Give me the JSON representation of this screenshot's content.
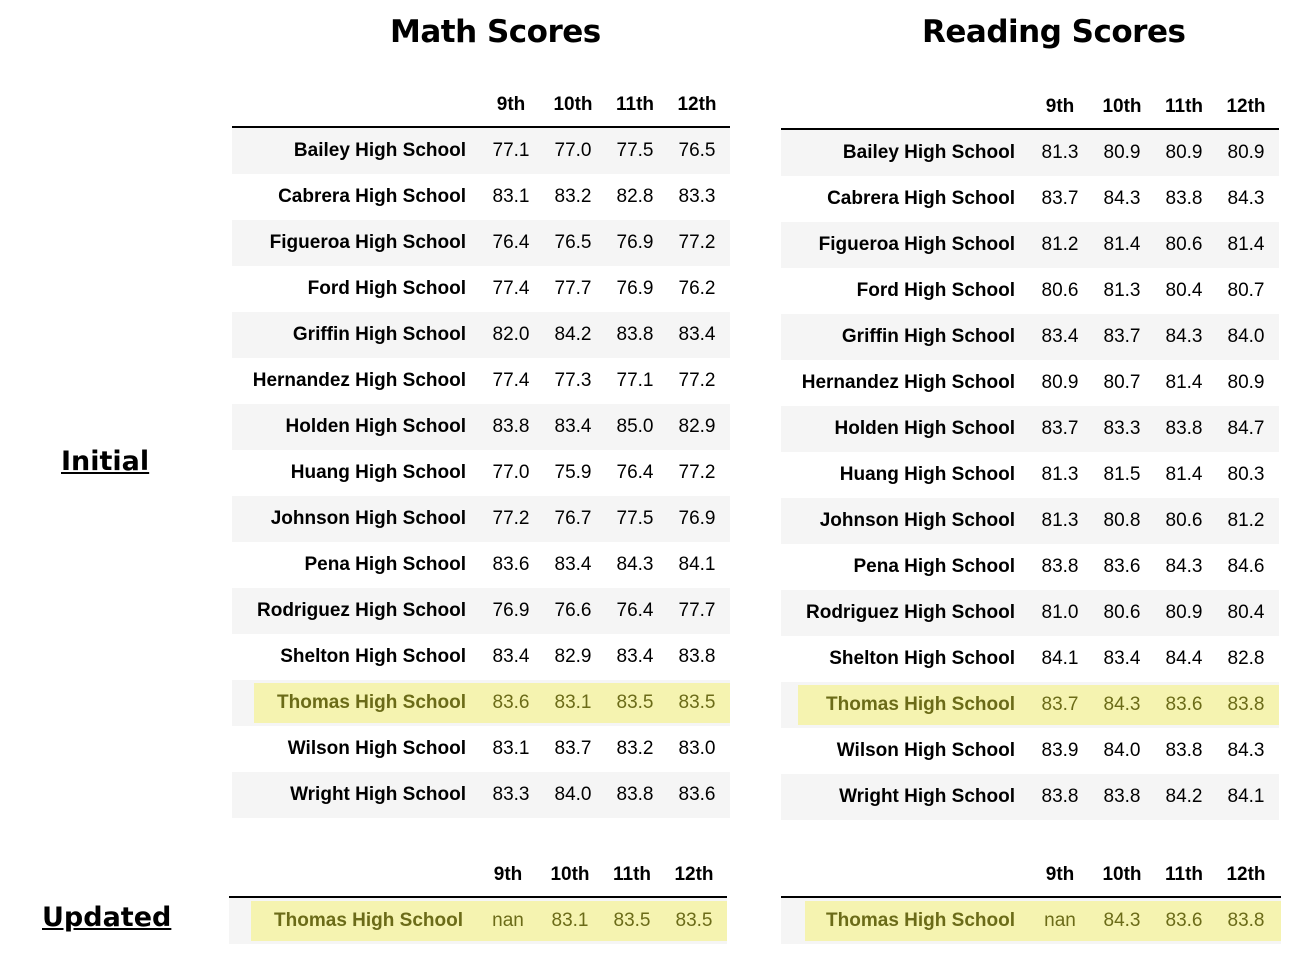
{
  "titles": {
    "math": "Math Scores",
    "reading": "Reading Scores"
  },
  "labels": {
    "initial": "Initial",
    "updated": "Updated"
  },
  "columns": [
    "9th",
    "10th",
    "11th",
    "12th"
  ],
  "highlight_color": "#f5f3b0",
  "math_initial": [
    {
      "school": "Bailey High School",
      "scores": [
        "77.1",
        "77.0",
        "77.5",
        "76.5"
      ]
    },
    {
      "school": "Cabrera High School",
      "scores": [
        "83.1",
        "83.2",
        "82.8",
        "83.3"
      ]
    },
    {
      "school": "Figueroa High School",
      "scores": [
        "76.4",
        "76.5",
        "76.9",
        "77.2"
      ]
    },
    {
      "school": "Ford High School",
      "scores": [
        "77.4",
        "77.7",
        "76.9",
        "76.2"
      ]
    },
    {
      "school": "Griffin High School",
      "scores": [
        "82.0",
        "84.2",
        "83.8",
        "83.4"
      ]
    },
    {
      "school": "Hernandez High School",
      "scores": [
        "77.4",
        "77.3",
        "77.1",
        "77.2"
      ]
    },
    {
      "school": "Holden High School",
      "scores": [
        "83.8",
        "83.4",
        "85.0",
        "82.9"
      ]
    },
    {
      "school": "Huang High School",
      "scores": [
        "77.0",
        "75.9",
        "76.4",
        "77.2"
      ]
    },
    {
      "school": "Johnson High School",
      "scores": [
        "77.2",
        "76.7",
        "77.5",
        "76.9"
      ]
    },
    {
      "school": "Pena High School",
      "scores": [
        "83.6",
        "83.4",
        "84.3",
        "84.1"
      ]
    },
    {
      "school": "Rodriguez High School",
      "scores": [
        "76.9",
        "76.6",
        "76.4",
        "77.7"
      ]
    },
    {
      "school": "Shelton High School",
      "scores": [
        "83.4",
        "82.9",
        "83.4",
        "83.8"
      ]
    },
    {
      "school": "Thomas High School",
      "scores": [
        "83.6",
        "83.1",
        "83.5",
        "83.5"
      ],
      "highlight": true
    },
    {
      "school": "Wilson High School",
      "scores": [
        "83.1",
        "83.7",
        "83.2",
        "83.0"
      ]
    },
    {
      "school": "Wright High School",
      "scores": [
        "83.3",
        "84.0",
        "83.8",
        "83.6"
      ]
    }
  ],
  "reading_initial": [
    {
      "school": "Bailey High School",
      "scores": [
        "81.3",
        "80.9",
        "80.9",
        "80.9"
      ]
    },
    {
      "school": "Cabrera High School",
      "scores": [
        "83.7",
        "84.3",
        "83.8",
        "84.3"
      ]
    },
    {
      "school": "Figueroa High School",
      "scores": [
        "81.2",
        "81.4",
        "80.6",
        "81.4"
      ]
    },
    {
      "school": "Ford High School",
      "scores": [
        "80.6",
        "81.3",
        "80.4",
        "80.7"
      ]
    },
    {
      "school": "Griffin High School",
      "scores": [
        "83.4",
        "83.7",
        "84.3",
        "84.0"
      ]
    },
    {
      "school": "Hernandez High School",
      "scores": [
        "80.9",
        "80.7",
        "81.4",
        "80.9"
      ]
    },
    {
      "school": "Holden High School",
      "scores": [
        "83.7",
        "83.3",
        "83.8",
        "84.7"
      ]
    },
    {
      "school": "Huang High School",
      "scores": [
        "81.3",
        "81.5",
        "81.4",
        "80.3"
      ]
    },
    {
      "school": "Johnson High School",
      "scores": [
        "81.3",
        "80.8",
        "80.6",
        "81.2"
      ]
    },
    {
      "school": "Pena High School",
      "scores": [
        "83.8",
        "83.6",
        "84.3",
        "84.6"
      ]
    },
    {
      "school": "Rodriguez High School",
      "scores": [
        "81.0",
        "80.6",
        "80.9",
        "80.4"
      ]
    },
    {
      "school": "Shelton High School",
      "scores": [
        "84.1",
        "83.4",
        "84.4",
        "82.8"
      ]
    },
    {
      "school": "Thomas High School",
      "scores": [
        "83.7",
        "84.3",
        "83.6",
        "83.8"
      ],
      "highlight": true
    },
    {
      "school": "Wilson High School",
      "scores": [
        "83.9",
        "84.0",
        "83.8",
        "84.3"
      ]
    },
    {
      "school": "Wright High School",
      "scores": [
        "83.8",
        "83.8",
        "84.2",
        "84.1"
      ]
    }
  ],
  "math_updated": [
    {
      "school": "Thomas High School",
      "scores": [
        "nan",
        "83.1",
        "83.5",
        "83.5"
      ],
      "highlight": true
    }
  ],
  "reading_updated": [
    {
      "school": "Thomas High School",
      "scores": [
        "nan",
        "84.3",
        "83.6",
        "83.8"
      ],
      "highlight": true
    }
  ]
}
